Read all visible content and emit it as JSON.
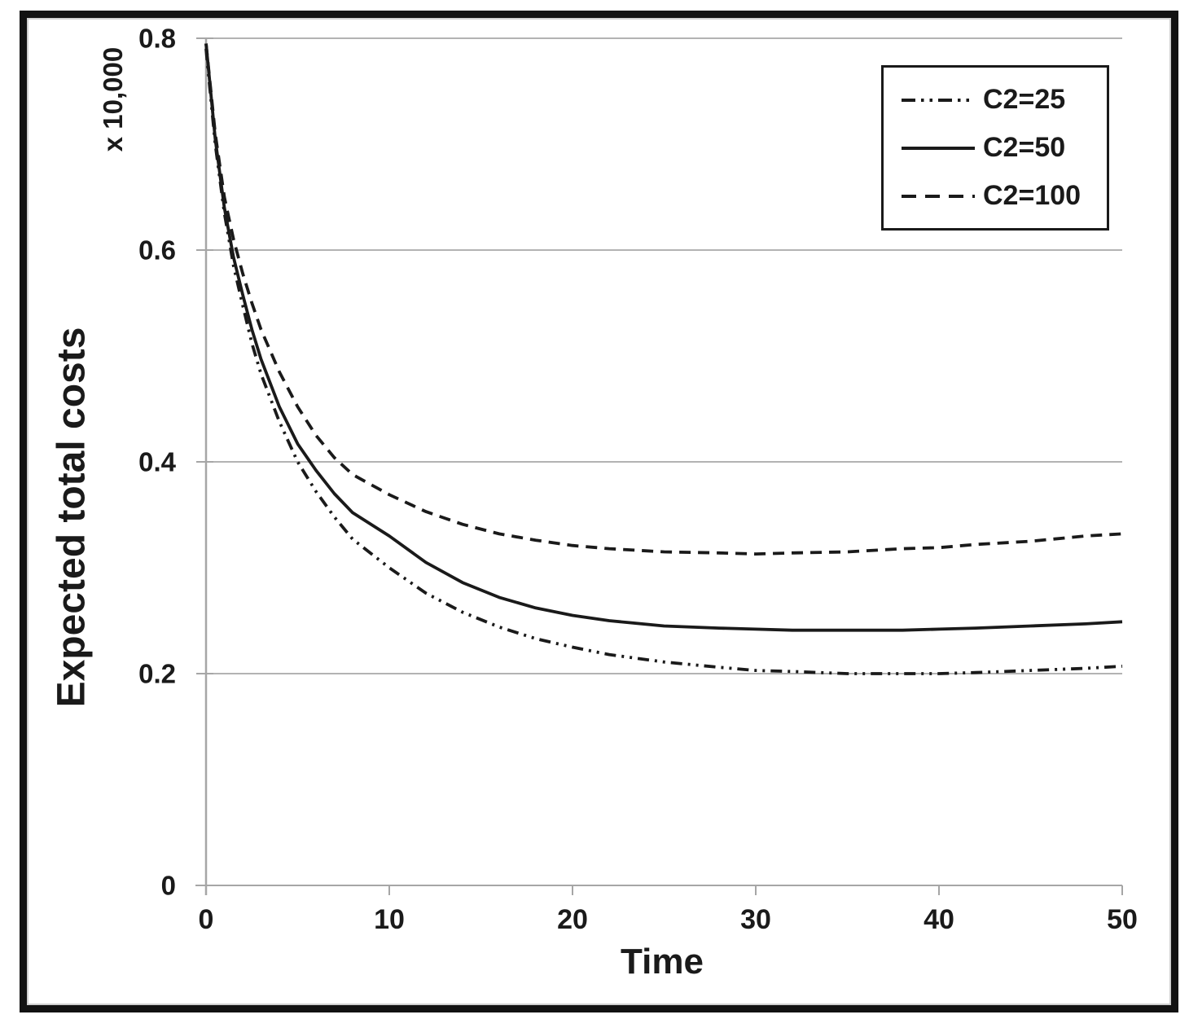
{
  "chart_data": {
    "type": "line",
    "title": "",
    "xlabel": "Time",
    "ylabel": "Expected total costs",
    "y_multiplier_label": "x 10,000",
    "xlim": [
      0,
      50
    ],
    "ylim": [
      0,
      0.8
    ],
    "x_ticks": [
      0,
      10,
      20,
      30,
      40,
      50
    ],
    "x_tick_labels": [
      "0",
      "10",
      "20",
      "30",
      "40",
      "50"
    ],
    "y_ticks": [
      0,
      0.2,
      0.4,
      0.6,
      0.8
    ],
    "y_tick_labels": [
      "0",
      "0.2",
      "0.4",
      "0.6",
      "0.8"
    ],
    "grid": "horizontal-only",
    "legend_position": "top-right",
    "line_color": "#1a1a1a",
    "gridline_color": "#b3b3b3",
    "axis_color": "#a6a6a6",
    "x": [
      0,
      0.5,
      1,
      1.5,
      2,
      2.5,
      3,
      4,
      5,
      6,
      7,
      8,
      10,
      12,
      14,
      16,
      18,
      20,
      22,
      25,
      28,
      30,
      32,
      35,
      38,
      40,
      42,
      45,
      48,
      50
    ],
    "series": [
      {
        "name": "C2=25",
        "style": "dashdotdot",
        "values": [
          0.79,
          0.7,
          0.635,
          0.585,
          0.548,
          0.512,
          0.483,
          0.438,
          0.4,
          0.372,
          0.348,
          0.327,
          0.3,
          0.276,
          0.258,
          0.244,
          0.233,
          0.225,
          0.218,
          0.211,
          0.206,
          0.203,
          0.202,
          0.2,
          0.2,
          0.2,
          0.201,
          0.203,
          0.205,
          0.207
        ]
      },
      {
        "name": "C2=50",
        "style": "solid",
        "values": [
          0.795,
          0.705,
          0.64,
          0.593,
          0.558,
          0.525,
          0.497,
          0.452,
          0.417,
          0.392,
          0.37,
          0.352,
          0.33,
          0.305,
          0.286,
          0.272,
          0.262,
          0.255,
          0.25,
          0.245,
          0.243,
          0.242,
          0.241,
          0.241,
          0.241,
          0.242,
          0.243,
          0.245,
          0.247,
          0.249
        ]
      },
      {
        "name": "C2=100",
        "style": "dashed",
        "values": [
          0.795,
          0.71,
          0.65,
          0.61,
          0.578,
          0.55,
          0.525,
          0.485,
          0.452,
          0.425,
          0.404,
          0.388,
          0.369,
          0.353,
          0.341,
          0.332,
          0.326,
          0.321,
          0.318,
          0.315,
          0.314,
          0.313,
          0.314,
          0.315,
          0.318,
          0.319,
          0.322,
          0.325,
          0.33,
          0.332
        ]
      }
    ]
  }
}
